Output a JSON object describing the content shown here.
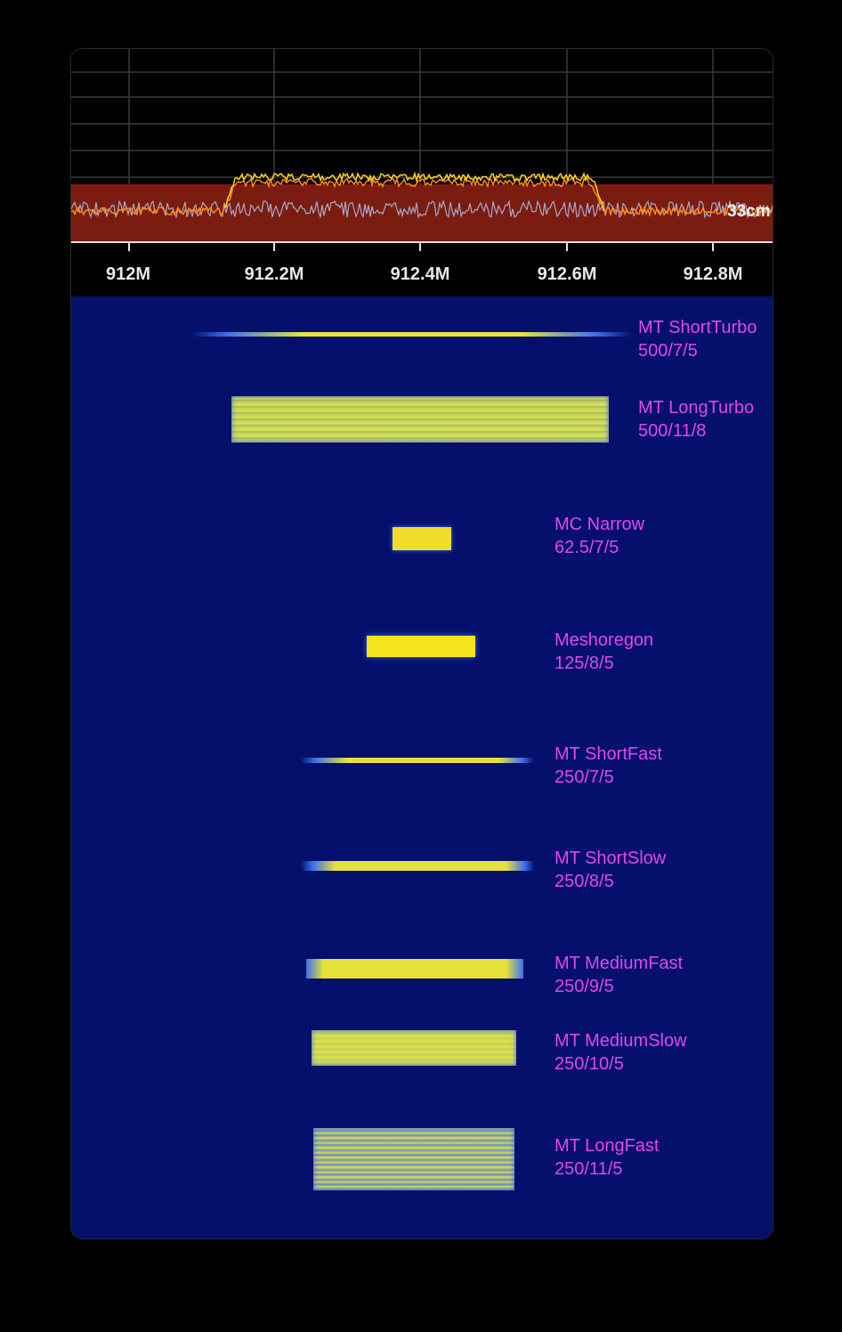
{
  "spectrum": {
    "ref_level_label": "33cm",
    "colors": {
      "trace_peak": "#ffd21f",
      "trace_avg": "#ff8a1a",
      "trace_live": "#a9a9c9",
      "noise_band": "#7a1c10",
      "grid": "#3a3a3a"
    }
  },
  "frequency_axis": {
    "ticks": [
      "912M",
      "912.2M",
      "912.4M",
      "912.6M",
      "912.8M"
    ]
  },
  "waterfall": {
    "background": "#04106b",
    "signal_color": "#e6e23a",
    "label_color": "#e047f0",
    "signals": [
      {
        "name": "MT ShortTurbo",
        "params": "500/7/5"
      },
      {
        "name": "MT LongTurbo",
        "params": "500/11/8"
      },
      {
        "name": "MC Narrow",
        "params": "62.5/7/5"
      },
      {
        "name": "Meshoregon",
        "params": "125/8/5"
      },
      {
        "name": "MT ShortFast",
        "params": "250/7/5"
      },
      {
        "name": "MT ShortSlow",
        "params": "250/8/5"
      },
      {
        "name": "MT MediumFast",
        "params": "250/9/5"
      },
      {
        "name": "MT MediumSlow",
        "params": "250/10/5"
      },
      {
        "name": "MT LongFast",
        "params": "250/11/5"
      }
    ]
  }
}
